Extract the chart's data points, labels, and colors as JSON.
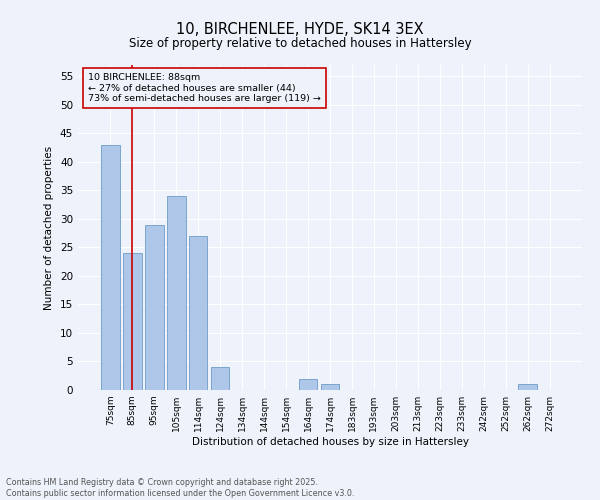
{
  "title": "10, BIRCHENLEE, HYDE, SK14 3EX",
  "subtitle": "Size of property relative to detached houses in Hattersley",
  "xlabel": "Distribution of detached houses by size in Hattersley",
  "ylabel": "Number of detached properties",
  "footer_line1": "Contains HM Land Registry data © Crown copyright and database right 2025.",
  "footer_line2": "Contains public sector information licensed under the Open Government Licence v3.0.",
  "bar_labels": [
    "75sqm",
    "85sqm",
    "95sqm",
    "105sqm",
    "114sqm",
    "124sqm",
    "134sqm",
    "144sqm",
    "154sqm",
    "164sqm",
    "174sqm",
    "183sqm",
    "193sqm",
    "203sqm",
    "213sqm",
    "223sqm",
    "233sqm",
    "242sqm",
    "252sqm",
    "262sqm",
    "272sqm"
  ],
  "bar_values": [
    43,
    24,
    29,
    34,
    27,
    4,
    0,
    0,
    0,
    2,
    1,
    0,
    0,
    0,
    0,
    0,
    0,
    0,
    0,
    1,
    0
  ],
  "bar_color": "#aec6e8",
  "bar_edge_color": "#5a8fc0",
  "ylim": [
    0,
    57
  ],
  "yticks": [
    0,
    5,
    10,
    15,
    20,
    25,
    30,
    35,
    40,
    45,
    50,
    55
  ],
  "property_label": "10 BIRCHENLEE: 88sqm",
  "pct_smaller": "27%",
  "num_smaller": 44,
  "pct_larger_semi": "73%",
  "num_larger_semi": 119,
  "vline_x_index": 1,
  "background_color": "#eef2fa",
  "grid_color": "#ffffff",
  "vline_color": "#cc0000"
}
